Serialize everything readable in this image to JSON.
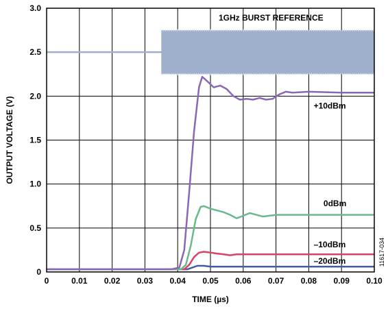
{
  "chart_data": {
    "type": "line",
    "xlabel": "TIME (µs)",
    "ylabel": "OUTPUT VOLTAGE (V)",
    "xlim": [
      0,
      0.1
    ],
    "ylim": [
      0,
      3.0
    ],
    "x_ticks": [
      "0",
      "0.01",
      "0.02",
      "0.03",
      "0.04",
      "0.05",
      "0.06",
      "0.07",
      "0.08",
      "0.09",
      "0.10"
    ],
    "y_ticks": [
      "0",
      "0.5",
      "1.0",
      "1.5",
      "2.0",
      "2.5",
      "3.0"
    ],
    "grid": true,
    "figure_id": "11617-034",
    "reference": {
      "name": "1GHz BURST REFERENCE",
      "color": "#9fb0cd",
      "baseline": 2.5,
      "burst_start": 0.035,
      "burst_low": 2.25,
      "burst_high": 2.75
    },
    "series": [
      {
        "name": "+10dBm",
        "color": "#8867b7",
        "x": [
          0,
          0.038,
          0.0405,
          0.042,
          0.0435,
          0.045,
          0.0465,
          0.0475,
          0.049,
          0.051,
          0.053,
          0.055,
          0.057,
          0.059,
          0.061,
          0.063,
          0.065,
          0.067,
          0.069,
          0.071,
          0.073,
          0.075,
          0.08,
          0.09,
          0.1
        ],
        "y": [
          0.03,
          0.03,
          0.05,
          0.25,
          0.9,
          1.6,
          2.1,
          2.22,
          2.17,
          2.1,
          2.12,
          2.08,
          2.0,
          1.96,
          1.97,
          1.96,
          1.98,
          1.96,
          1.97,
          2.02,
          2.05,
          2.04,
          2.05,
          2.04,
          2.04
        ]
      },
      {
        "name": "0dBm",
        "color": "#6ab98a",
        "x": [
          0,
          0.041,
          0.0425,
          0.044,
          0.0455,
          0.047,
          0.048,
          0.05,
          0.052,
          0.054,
          0.056,
          0.058,
          0.06,
          0.062,
          0.064,
          0.066,
          0.07,
          0.08,
          0.09,
          0.1
        ],
        "y": [
          0.03,
          0.03,
          0.08,
          0.3,
          0.6,
          0.74,
          0.75,
          0.72,
          0.7,
          0.68,
          0.65,
          0.61,
          0.64,
          0.67,
          0.65,
          0.63,
          0.65,
          0.65,
          0.65,
          0.65
        ]
      },
      {
        "name": "–10dBm",
        "color": "#d94466",
        "x": [
          0,
          0.042,
          0.0435,
          0.045,
          0.0465,
          0.048,
          0.05,
          0.052,
          0.054,
          0.056,
          0.058,
          0.06,
          0.07,
          0.08,
          0.09,
          0.1
        ],
        "y": [
          0.03,
          0.03,
          0.08,
          0.17,
          0.22,
          0.23,
          0.22,
          0.21,
          0.2,
          0.19,
          0.2,
          0.2,
          0.2,
          0.2,
          0.2,
          0.2
        ]
      },
      {
        "name": "–20dBm",
        "color": "#3f5ea3",
        "x": [
          0,
          0.043,
          0.0445,
          0.046,
          0.048,
          0.05,
          0.06,
          0.07,
          0.08,
          0.09,
          0.1
        ],
        "y": [
          0.03,
          0.03,
          0.05,
          0.07,
          0.07,
          0.06,
          0.06,
          0.06,
          0.06,
          0.06,
          0.06
        ]
      }
    ]
  }
}
